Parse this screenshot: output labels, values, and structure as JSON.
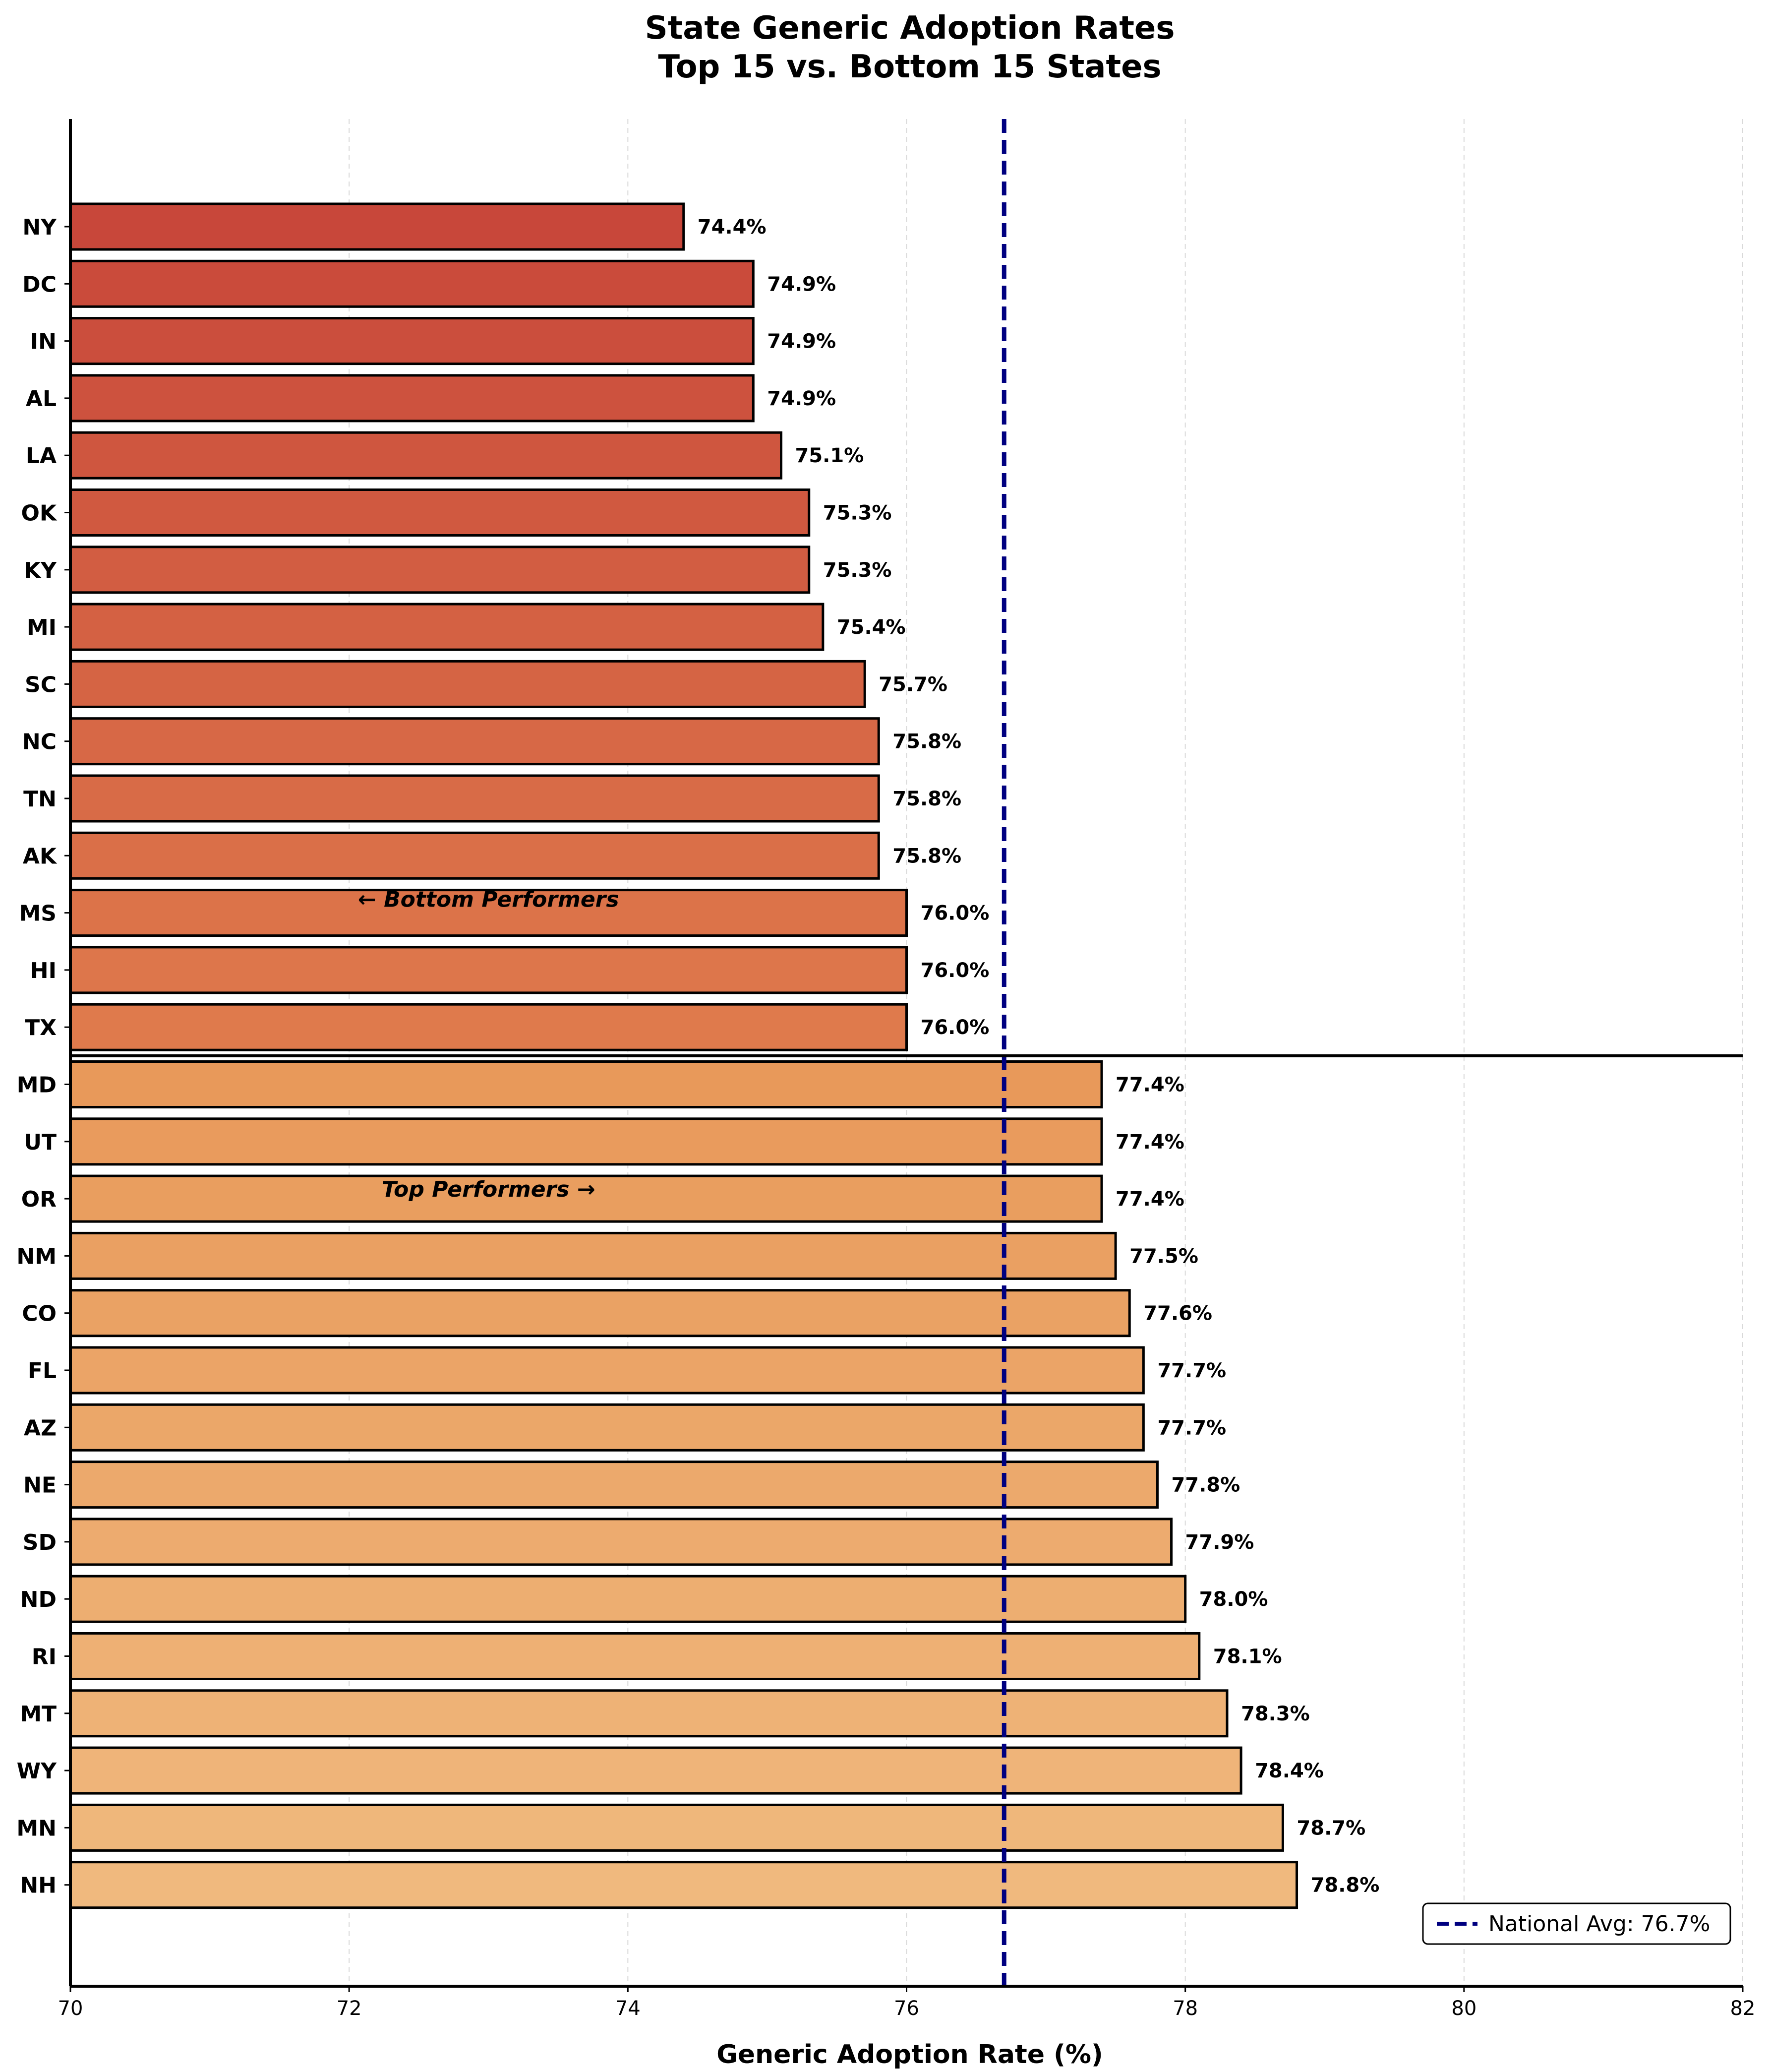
{
  "chart_data": {
    "type": "bar",
    "orientation": "horizontal",
    "title": "State Generic Adoption Rates",
    "subtitle": "Top 15 vs. Bottom 15 States",
    "xlabel": "Generic Adoption Rate (%)",
    "ylabel": "",
    "xlim": [
      70,
      82
    ],
    "xticks": [
      70,
      72,
      74,
      76,
      78,
      80,
      82
    ],
    "grid": "vertical dashed",
    "categories": [
      "NY",
      "DC",
      "IN",
      "AL",
      "LA",
      "OK",
      "KY",
      "MI",
      "SC",
      "NC",
      "TN",
      "AK",
      "MS",
      "HI",
      "TX",
      "MD",
      "UT",
      "OR",
      "NM",
      "CO",
      "FL",
      "AZ",
      "NE",
      "SD",
      "ND",
      "RI",
      "MT",
      "WY",
      "MN",
      "NH"
    ],
    "values": [
      74.4,
      74.9,
      74.9,
      74.9,
      75.1,
      75.3,
      75.3,
      75.4,
      75.7,
      75.8,
      75.8,
      75.8,
      76.0,
      76.0,
      76.0,
      77.4,
      77.4,
      77.4,
      77.5,
      77.6,
      77.7,
      77.7,
      77.8,
      77.9,
      78.0,
      78.1,
      78.3,
      78.4,
      78.7,
      78.8
    ],
    "value_labels": [
      "74.4%",
      "74.9%",
      "74.9%",
      "74.9%",
      "75.1%",
      "75.3%",
      "75.3%",
      "75.4%",
      "75.7%",
      "75.8%",
      "75.8%",
      "75.8%",
      "76.0%",
      "76.0%",
      "76.0%",
      "77.4%",
      "77.4%",
      "77.4%",
      "77.5%",
      "77.6%",
      "77.7%",
      "77.7%",
      "77.8%",
      "77.9%",
      "78.0%",
      "78.1%",
      "78.3%",
      "78.4%",
      "78.7%",
      "78.8%"
    ],
    "groups": {
      "bottom": {
        "count": 15,
        "color_from": "#c8473a",
        "color_to": "#df7a4c"
      },
      "top": {
        "count": 15,
        "color_from": "#e8995a",
        "color_to": "#f0b97e"
      }
    },
    "reference_line": {
      "value": 76.7,
      "label": "National Avg: 76.7%",
      "color": "#000080",
      "style": "dashed"
    },
    "annotations": {
      "bottom": "← Bottom Performers",
      "top": "Top Performers →"
    },
    "legend_position": "bottom-right",
    "bar_edge_color": "#000000"
  }
}
